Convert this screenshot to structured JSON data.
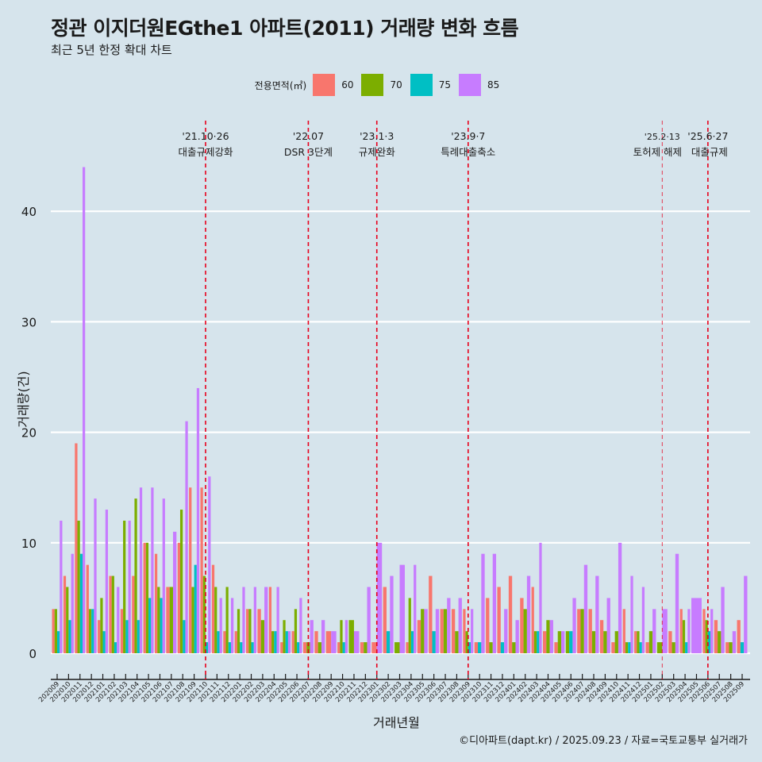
{
  "title": "정관 이지더원EGthe1 아파트(2011) 거래량 변화 흐름",
  "subtitle": "최근 5년 한정 확대 차트",
  "caption": "©디아파트(dapt.kr) / 2025.09.23 / 자료=국토교통부 실거래가",
  "legend": {
    "title": "전용면적(㎡)",
    "items": [
      {
        "label": "60",
        "color": "#F8766D"
      },
      {
        "label": "70",
        "color": "#7CAE00"
      },
      {
        "label": "75",
        "color": "#00BFC4"
      },
      {
        "label": "85",
        "color": "#C77CFF"
      }
    ]
  },
  "chart_data": {
    "type": "bar",
    "title": "정관 이지더원EGthe1 아파트(2011) 거래량 변화 흐름",
    "xlabel": "거래년월",
    "ylabel": "거래량(건)",
    "ylim": [
      -2,
      47
    ],
    "yticks": [
      0,
      10,
      20,
      30,
      40
    ],
    "grid": true,
    "legend_position": "top",
    "categories": [
      "202009",
      "202010",
      "202011",
      "202012",
      "202101",
      "202102",
      "202103",
      "202104",
      "202105",
      "202106",
      "202107",
      "202108",
      "202109",
      "202110",
      "202111",
      "202112",
      "202201",
      "202202",
      "202203",
      "202204",
      "202205",
      "202206",
      "202207",
      "202208",
      "202209",
      "202210",
      "202211",
      "202212",
      "202301",
      "202302",
      "202303",
      "202304",
      "202305",
      "202306",
      "202307",
      "202308",
      "202309",
      "202310",
      "202311",
      "202312",
      "202401",
      "202402",
      "202403",
      "202404",
      "202405",
      "202406",
      "202407",
      "202408",
      "202409",
      "202410",
      "202411",
      "202412",
      "202501",
      "202502",
      "202503",
      "202504",
      "202505",
      "202506",
      "202507",
      "202508",
      "202509"
    ],
    "series": [
      {
        "name": "60",
        "values": [
          4,
          7,
          19,
          8,
          3,
          7,
          4,
          7,
          10,
          9,
          6,
          10,
          15,
          15,
          8,
          2,
          2,
          4,
          4,
          6,
          1,
          2,
          1,
          2,
          2,
          1,
          null,
          1,
          1,
          6,
          null,
          1,
          3,
          7,
          4,
          4,
          4,
          1,
          5,
          6,
          7,
          5,
          6,
          2,
          1,
          null,
          4,
          4,
          3,
          1,
          4,
          2,
          1,
          null,
          2,
          4,
          null,
          4,
          3,
          1,
          3
        ]
      },
      {
        "name": "70",
        "values": [
          4,
          6,
          12,
          4,
          5,
          7,
          12,
          14,
          10,
          6,
          6,
          13,
          6,
          7,
          6,
          6,
          4,
          4,
          3,
          2,
          3,
          4,
          1,
          1,
          null,
          3,
          3,
          1,
          null,
          null,
          1,
          5,
          4,
          null,
          4,
          2,
          2,
          null,
          1,
          null,
          1,
          4,
          2,
          3,
          2,
          2,
          4,
          2,
          2,
          2,
          1,
          2,
          2,
          1,
          1,
          3,
          null,
          3,
          2,
          1,
          null
        ]
      },
      {
        "name": "75",
        "values": [
          2,
          3,
          9,
          4,
          2,
          1,
          3,
          3,
          5,
          5,
          null,
          3,
          8,
          1,
          2,
          1,
          1,
          1,
          null,
          2,
          2,
          1,
          null,
          null,
          null,
          1,
          null,
          null,
          null,
          2,
          null,
          2,
          null,
          2,
          null,
          null,
          1,
          1,
          null,
          1,
          null,
          null,
          2,
          null,
          null,
          2,
          null,
          null,
          null,
          null,
          1,
          1,
          null,
          null,
          null,
          1,
          null,
          2,
          null,
          null,
          1
        ]
      },
      {
        "name": "85",
        "values": [
          12,
          9,
          44,
          14,
          13,
          6,
          12,
          15,
          15,
          14,
          11,
          21,
          24,
          16,
          5,
          5,
          6,
          6,
          6,
          6,
          2,
          5,
          3,
          3,
          2,
          3,
          2,
          6,
          10,
          7,
          8,
          8,
          4,
          4,
          5,
          5,
          4,
          9,
          9,
          4,
          3,
          7,
          10,
          3,
          2,
          5,
          8,
          7,
          5,
          10,
          7,
          6,
          4,
          4,
          9,
          4,
          5,
          4,
          6,
          2,
          7
        ]
      }
    ],
    "annotations": [
      {
        "x": "202110",
        "date": "'21.10·26",
        "label": "대출규제강화"
      },
      {
        "x": "202207",
        "date": "'22.07",
        "label": "DSR 3단계"
      },
      {
        "x": "202301",
        "date": "'23.1·3",
        "label": "규제완화"
      },
      {
        "x": "202309",
        "date": "'23.9·7",
        "label": "특례대출축소"
      },
      {
        "x": "202502",
        "date": "'25.2·13",
        "label": "토허제 해제"
      },
      {
        "x": "202506",
        "date": "'25.6·27",
        "label": "대출규제"
      }
    ],
    "annotation_color": "#E8001C"
  }
}
